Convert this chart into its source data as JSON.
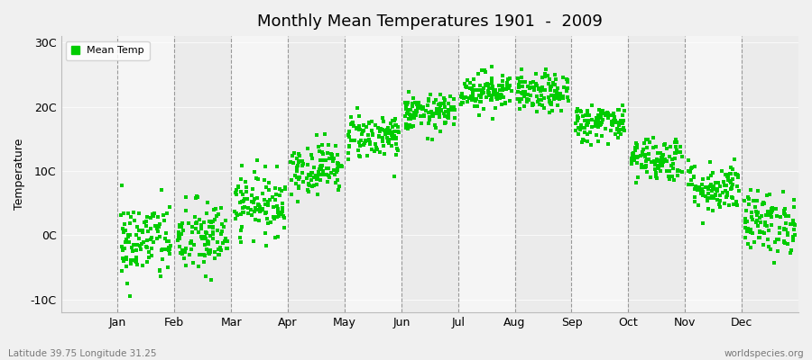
{
  "title": "Monthly Mean Temperatures 1901  -  2009",
  "ylabel": "Temperature",
  "xlabel_labels": [
    "Jan",
    "Feb",
    "Mar",
    "Apr",
    "May",
    "Jun",
    "Jul",
    "Aug",
    "Sep",
    "Oct",
    "Nov",
    "Dec"
  ],
  "ytick_labels": [
    "-10C",
    "0C",
    "10C",
    "20C",
    "30C"
  ],
  "ytick_values": [
    -10,
    0,
    10,
    20,
    30
  ],
  "ylim": [
    -12,
    31
  ],
  "xlim": [
    0,
    13
  ],
  "legend_label": "Mean Temp",
  "dot_color": "#00cc00",
  "dot_size": 5,
  "bg_color": "#f0f0f0",
  "plot_bg_color": "#f0f0f0",
  "subtitle_left": "Latitude 39.75 Longitude 31.25",
  "subtitle_right": "worldspecies.org",
  "monthly_means": [
    -1.0,
    -0.5,
    5.0,
    10.5,
    15.5,
    19.0,
    22.5,
    22.0,
    17.5,
    12.0,
    7.5,
    2.0
  ],
  "monthly_stds": [
    3.2,
    3.0,
    2.4,
    2.0,
    1.8,
    1.4,
    1.5,
    1.5,
    1.5,
    1.8,
    2.0,
    2.4
  ],
  "n_years": 109,
  "seed": 42,
  "vline_color": "#999999",
  "spine_color": "#bbbbbb"
}
